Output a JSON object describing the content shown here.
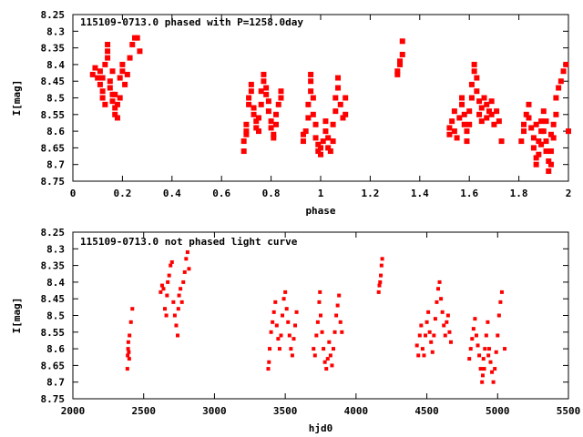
{
  "chart_data": [
    {
      "type": "scatter",
      "title": "115109-0713.0 phased with P=1258.0day",
      "xlabel": "phase",
      "ylabel": "I[mag]",
      "xlim": [
        0,
        2
      ],
      "ylim": [
        8.75,
        8.25
      ],
      "y_inverted": true,
      "grid": false,
      "marker_color": "#ff0000",
      "xticks": [
        "0",
        "0.2",
        "0.4",
        "0.6",
        "0.8",
        "1",
        "1.2",
        "1.4",
        "1.6",
        "1.8",
        "2"
      ],
      "yticks": [
        "8.25",
        "8.3",
        "8.35",
        "8.4",
        "8.45",
        "8.5",
        "8.55",
        "8.6",
        "8.65",
        "8.7",
        "8.75"
      ],
      "points": [
        [
          0.08,
          8.43
        ],
        [
          0.09,
          8.41
        ],
        [
          0.1,
          8.44
        ],
        [
          0.11,
          8.42
        ],
        [
          0.12,
          8.48
        ],
        [
          0.12,
          8.5
        ],
        [
          0.13,
          8.52
        ],
        [
          0.13,
          8.4
        ],
        [
          0.14,
          8.38
        ],
        [
          0.14,
          8.36
        ],
        [
          0.14,
          8.34
        ],
        [
          0.15,
          8.45
        ],
        [
          0.15,
          8.47
        ],
        [
          0.16,
          8.49
        ],
        [
          0.16,
          8.51
        ],
        [
          0.17,
          8.53
        ],
        [
          0.17,
          8.55
        ],
        [
          0.18,
          8.56
        ],
        [
          0.18,
          8.52
        ],
        [
          0.19,
          8.5
        ],
        [
          0.19,
          8.44
        ],
        [
          0.2,
          8.42
        ],
        [
          0.2,
          8.4
        ],
        [
          0.21,
          8.46
        ],
        [
          0.22,
          8.43
        ],
        [
          0.23,
          8.38
        ],
        [
          0.24,
          8.34
        ],
        [
          0.25,
          8.32
        ],
        [
          0.26,
          8.32
        ],
        [
          0.27,
          8.36
        ],
        [
          0.12,
          8.44
        ],
        [
          0.11,
          8.46
        ],
        [
          0.16,
          8.42
        ],
        [
          0.17,
          8.49
        ],
        [
          0.69,
          8.66
        ],
        [
          0.69,
          8.63
        ],
        [
          0.7,
          8.61
        ],
        [
          0.7,
          8.6
        ],
        [
          0.7,
          8.58
        ],
        [
          0.71,
          8.52
        ],
        [
          0.71,
          8.5
        ],
        [
          0.72,
          8.48
        ],
        [
          0.72,
          8.46
        ],
        [
          0.73,
          8.53
        ],
        [
          0.73,
          8.55
        ],
        [
          0.74,
          8.57
        ],
        [
          0.74,
          8.59
        ],
        [
          0.75,
          8.6
        ],
        [
          0.75,
          8.56
        ],
        [
          0.76,
          8.52
        ],
        [
          0.76,
          8.48
        ],
        [
          0.77,
          8.45
        ],
        [
          0.77,
          8.43
        ],
        [
          0.78,
          8.47
        ],
        [
          0.78,
          8.49
        ],
        [
          0.79,
          8.51
        ],
        [
          0.79,
          8.54
        ],
        [
          0.8,
          8.57
        ],
        [
          0.8,
          8.59
        ],
        [
          0.81,
          8.61
        ],
        [
          0.81,
          8.62
        ],
        [
          0.82,
          8.58
        ],
        [
          0.82,
          8.55
        ],
        [
          0.83,
          8.52
        ],
        [
          0.84,
          8.5
        ],
        [
          0.84,
          8.48
        ],
        [
          0.93,
          8.61
        ],
        [
          0.93,
          8.63
        ],
        [
          0.94,
          8.6
        ],
        [
          0.95,
          8.56
        ],
        [
          0.95,
          8.52
        ],
        [
          0.96,
          8.48
        ],
        [
          0.96,
          8.45
        ],
        [
          0.96,
          8.43
        ],
        [
          0.97,
          8.5
        ],
        [
          0.97,
          8.55
        ],
        [
          0.98,
          8.58
        ],
        [
          0.98,
          8.62
        ],
        [
          0.99,
          8.64
        ],
        [
          0.99,
          8.66
        ],
        [
          1.0,
          8.67
        ],
        [
          1.0,
          8.65
        ],
        [
          1.01,
          8.63
        ],
        [
          1.02,
          8.6
        ],
        [
          1.02,
          8.57
        ],
        [
          1.03,
          8.62
        ],
        [
          1.03,
          8.65
        ],
        [
          1.04,
          8.66
        ],
        [
          1.05,
          8.63
        ],
        [
          1.05,
          8.58
        ],
        [
          1.06,
          8.54
        ],
        [
          1.06,
          8.5
        ],
        [
          1.07,
          8.47
        ],
        [
          1.07,
          8.44
        ],
        [
          1.08,
          8.52
        ],
        [
          1.09,
          8.56
        ],
        [
          1.1,
          8.55
        ],
        [
          1.1,
          8.5
        ],
        [
          1.31,
          8.43
        ],
        [
          1.31,
          8.42
        ],
        [
          1.32,
          8.4
        ],
        [
          1.32,
          8.39
        ],
        [
          1.33,
          8.37
        ],
        [
          1.33,
          8.33
        ],
        [
          1.52,
          8.59
        ],
        [
          1.52,
          8.61
        ],
        [
          1.53,
          8.57
        ],
        [
          1.54,
          8.54
        ],
        [
          1.54,
          8.6
        ],
        [
          1.55,
          8.62
        ],
        [
          1.56,
          8.56
        ],
        [
          1.57,
          8.52
        ],
        [
          1.57,
          8.5
        ],
        [
          1.58,
          8.55
        ],
        [
          1.58,
          8.58
        ],
        [
          1.59,
          8.6
        ],
        [
          1.59,
          8.63
        ],
        [
          1.6,
          8.58
        ],
        [
          1.6,
          8.54
        ],
        [
          1.61,
          8.5
        ],
        [
          1.61,
          8.46
        ],
        [
          1.62,
          8.42
        ],
        [
          1.62,
          8.4
        ],
        [
          1.63,
          8.44
        ],
        [
          1.63,
          8.48
        ],
        [
          1.64,
          8.51
        ],
        [
          1.64,
          8.55
        ],
        [
          1.65,
          8.57
        ],
        [
          1.65,
          8.53
        ],
        [
          1.66,
          8.5
        ],
        [
          1.67,
          8.52
        ],
        [
          1.67,
          8.56
        ],
        [
          1.68,
          8.54
        ],
        [
          1.69,
          8.51
        ],
        [
          1.69,
          8.55
        ],
        [
          1.7,
          8.58
        ],
        [
          1.71,
          8.54
        ],
        [
          1.72,
          8.57
        ],
        [
          1.73,
          8.63
        ],
        [
          1.81,
          8.63
        ],
        [
          1.82,
          8.6
        ],
        [
          1.82,
          8.58
        ],
        [
          1.83,
          8.55
        ],
        [
          1.84,
          8.52
        ],
        [
          1.84,
          8.56
        ],
        [
          1.85,
          8.59
        ],
        [
          1.86,
          8.62
        ],
        [
          1.86,
          8.65
        ],
        [
          1.87,
          8.68
        ],
        [
          1.87,
          8.7
        ],
        [
          1.88,
          8.67
        ],
        [
          1.88,
          8.63
        ],
        [
          1.89,
          8.6
        ],
        [
          1.89,
          8.57
        ],
        [
          1.9,
          8.54
        ],
        [
          1.9,
          8.6
        ],
        [
          1.91,
          8.63
        ],
        [
          1.91,
          8.66
        ],
        [
          1.92,
          8.69
        ],
        [
          1.92,
          8.72
        ],
        [
          1.93,
          8.7
        ],
        [
          1.93,
          8.66
        ],
        [
          1.94,
          8.62
        ],
        [
          1.94,
          8.58
        ],
        [
          1.95,
          8.55
        ],
        [
          1.95,
          8.5
        ],
        [
          1.96,
          8.47
        ],
        [
          1.97,
          8.45
        ],
        [
          1.98,
          8.42
        ],
        [
          1.99,
          8.4
        ],
        [
          2.0,
          8.6
        ],
        [
          1.87,
          8.58
        ],
        [
          1.89,
          8.64
        ],
        [
          1.91,
          8.57
        ],
        [
          1.93,
          8.61
        ]
      ]
    },
    {
      "type": "scatter",
      "title": "115109-0713.0 not phased light curve",
      "xlabel": "hjd0",
      "ylabel": "I[mag]",
      "xlim": [
        2000,
        5500
      ],
      "ylim": [
        8.75,
        8.25
      ],
      "y_inverted": true,
      "grid": false,
      "marker_color": "#ff0000",
      "xticks": [
        "2000",
        "2500",
        "3000",
        "3500",
        "4000",
        "4500",
        "5000",
        "5500"
      ],
      "yticks": [
        "8.25",
        "8.3",
        "8.35",
        "8.4",
        "8.45",
        "8.5",
        "8.55",
        "8.6",
        "8.65",
        "8.7",
        "8.75"
      ],
      "points": [
        [
          2385,
          8.66
        ],
        [
          2387,
          8.62
        ],
        [
          2390,
          8.6
        ],
        [
          2392,
          8.58
        ],
        [
          2395,
          8.61
        ],
        [
          2398,
          8.63
        ],
        [
          2400,
          8.56
        ],
        [
          2410,
          8.52
        ],
        [
          2420,
          8.48
        ],
        [
          2620,
          8.43
        ],
        [
          2630,
          8.41
        ],
        [
          2640,
          8.42
        ],
        [
          2650,
          8.48
        ],
        [
          2660,
          8.5
        ],
        [
          2665,
          8.44
        ],
        [
          2670,
          8.4
        ],
        [
          2680,
          8.38
        ],
        [
          2690,
          8.35
        ],
        [
          2700,
          8.34
        ],
        [
          2710,
          8.46
        ],
        [
          2720,
          8.5
        ],
        [
          2730,
          8.53
        ],
        [
          2740,
          8.56
        ],
        [
          2745,
          8.48
        ],
        [
          2750,
          8.44
        ],
        [
          2760,
          8.42
        ],
        [
          2770,
          8.46
        ],
        [
          2780,
          8.4
        ],
        [
          2790,
          8.37
        ],
        [
          2800,
          8.33
        ],
        [
          2810,
          8.31
        ],
        [
          2820,
          8.36
        ],
        [
          3380,
          8.66
        ],
        [
          3385,
          8.64
        ],
        [
          3390,
          8.6
        ],
        [
          3400,
          8.55
        ],
        [
          3410,
          8.52
        ],
        [
          3420,
          8.49
        ],
        [
          3430,
          8.46
        ],
        [
          3440,
          8.53
        ],
        [
          3450,
          8.57
        ],
        [
          3460,
          8.6
        ],
        [
          3470,
          8.56
        ],
        [
          3480,
          8.5
        ],
        [
          3490,
          8.45
        ],
        [
          3500,
          8.43
        ],
        [
          3510,
          8.48
        ],
        [
          3520,
          8.52
        ],
        [
          3530,
          8.56
        ],
        [
          3540,
          8.6
        ],
        [
          3550,
          8.62
        ],
        [
          3560,
          8.57
        ],
        [
          3570,
          8.53
        ],
        [
          3580,
          8.49
        ],
        [
          3700,
          8.6
        ],
        [
          3710,
          8.62
        ],
        [
          3720,
          8.56
        ],
        [
          3730,
          8.52
        ],
        [
          3740,
          8.46
        ],
        [
          3745,
          8.43
        ],
        [
          3750,
          8.5
        ],
        [
          3760,
          8.55
        ],
        [
          3770,
          8.6
        ],
        [
          3780,
          8.64
        ],
        [
          3790,
          8.66
        ],
        [
          3800,
          8.63
        ],
        [
          3810,
          8.58
        ],
        [
          3820,
          8.62
        ],
        [
          3830,
          8.65
        ],
        [
          3840,
          8.6
        ],
        [
          3850,
          8.55
        ],
        [
          3860,
          8.5
        ],
        [
          3870,
          8.47
        ],
        [
          3880,
          8.44
        ],
        [
          3890,
          8.52
        ],
        [
          3900,
          8.55
        ],
        [
          4160,
          8.43
        ],
        [
          4165,
          8.41
        ],
        [
          4170,
          8.4
        ],
        [
          4175,
          8.38
        ],
        [
          4180,
          8.35
        ],
        [
          4185,
          8.33
        ],
        [
          4430,
          8.59
        ],
        [
          4440,
          8.62
        ],
        [
          4450,
          8.56
        ],
        [
          4460,
          8.53
        ],
        [
          4470,
          8.6
        ],
        [
          4480,
          8.62
        ],
        [
          4490,
          8.56
        ],
        [
          4500,
          8.52
        ],
        [
          4510,
          8.49
        ],
        [
          4520,
          8.55
        ],
        [
          4530,
          8.58
        ],
        [
          4540,
          8.61
        ],
        [
          4550,
          8.56
        ],
        [
          4560,
          8.51
        ],
        [
          4570,
          8.46
        ],
        [
          4580,
          8.42
        ],
        [
          4590,
          8.4
        ],
        [
          4600,
          8.45
        ],
        [
          4610,
          8.49
        ],
        [
          4620,
          8.53
        ],
        [
          4630,
          8.56
        ],
        [
          4640,
          8.52
        ],
        [
          4650,
          8.5
        ],
        [
          4660,
          8.55
        ],
        [
          4670,
          8.58
        ],
        [
          4800,
          8.63
        ],
        [
          4810,
          8.6
        ],
        [
          4820,
          8.57
        ],
        [
          4830,
          8.54
        ],
        [
          4840,
          8.51
        ],
        [
          4850,
          8.56
        ],
        [
          4860,
          8.59
        ],
        [
          4870,
          8.62
        ],
        [
          4880,
          8.66
        ],
        [
          4890,
          8.7
        ],
        [
          4895,
          8.68
        ],
        [
          4900,
          8.63
        ],
        [
          4910,
          8.6
        ],
        [
          4920,
          8.56
        ],
        [
          4930,
          8.52
        ],
        [
          4940,
          8.6
        ],
        [
          4950,
          8.64
        ],
        [
          4960,
          8.67
        ],
        [
          4970,
          8.7
        ],
        [
          4980,
          8.66
        ],
        [
          4990,
          8.61
        ],
        [
          5000,
          8.56
        ],
        [
          5010,
          8.5
        ],
        [
          5020,
          8.46
        ],
        [
          5030,
          8.43
        ],
        [
          5050,
          8.6
        ],
        [
          4905,
          8.66
        ],
        [
          4935,
          8.62
        ]
      ]
    }
  ]
}
